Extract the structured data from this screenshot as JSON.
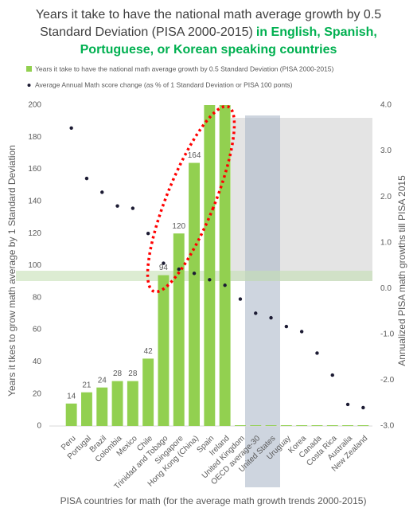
{
  "chart_data": {
    "type": "bar",
    "title": "Years it take to have the national math average growth by 0.5 Standard Deviation (PISA 2000-2015)",
    "title_highlight": "in English, Spanish, Portuguese, or Korean speaking countries",
    "x_label": "PISA countries for math (for the average math growth trends 2000-2015)",
    "y_label": "Years it tkes to grow math average by  1 Standard Deviation",
    "y2_label": "Annualized PISA math growths till PISA 2015",
    "categories": [
      "Peru",
      "Portugal",
      "Brazil",
      "Colombia",
      "Mexico",
      "Chile",
      "Trinidad and Tobago",
      "Singapore",
      "Hong Kong (China)",
      "Spain",
      "Ireland",
      "United Kingdom",
      "OECD average-30",
      "United States",
      "Uruguay",
      "Korea",
      "Canada",
      "Costa Rica",
      "Australia",
      "New Zealand"
    ],
    "series": [
      {
        "name": "Years it take to have the national math average growth by 0.5 Standard Deviation (PISA 2000-2015)",
        "color": "#92d050",
        "type": "bar",
        "values": [
          14,
          21,
          24,
          28,
          28,
          42,
          94,
          120,
          164,
          200,
          200,
          0,
          0,
          0,
          0,
          0,
          0,
          0,
          0,
          0
        ],
        "value_labels": [
          "14",
          "21",
          "24",
          "28",
          "28",
          "42",
          "94",
          "120",
          "164",
          null,
          null,
          null,
          null,
          null,
          null,
          null,
          null,
          null,
          null,
          null
        ]
      },
      {
        "name": "Average Annual Math score  change (as % of 1 Standard Deviation or PISA 100 ponts)",
        "color": "#1c1b33",
        "type": "scatter",
        "axis": "y2",
        "values": [
          3.5,
          2.4,
          2.1,
          1.8,
          1.75,
          1.2,
          0.55,
          0.42,
          0.33,
          0.19,
          0.07,
          -0.23,
          -0.54,
          -0.64,
          -0.83,
          -0.94,
          -1.41,
          -1.89,
          -2.53,
          -2.6
        ]
      }
    ],
    "ylim": [
      0,
      200
    ],
    "yticks": [
      0,
      20,
      40,
      60,
      80,
      100,
      120,
      140,
      160,
      180,
      200
    ],
    "y2lim": [
      -3,
      4
    ],
    "y2ticks": [
      {
        "value": 4,
        "label": "4.0"
      },
      {
        "value": 3,
        "label": "3.0"
      },
      {
        "value": 2,
        "label": "2.0"
      },
      {
        "value": 1,
        "label": "1.0"
      },
      {
        "value": 0,
        "label": "0.0"
      },
      {
        "value": -1,
        "label": "-1.0"
      },
      {
        "value": -2,
        "label": "-2.0"
      },
      {
        "value": -3,
        "label": "-3.0"
      }
    ],
    "legend": "top"
  }
}
